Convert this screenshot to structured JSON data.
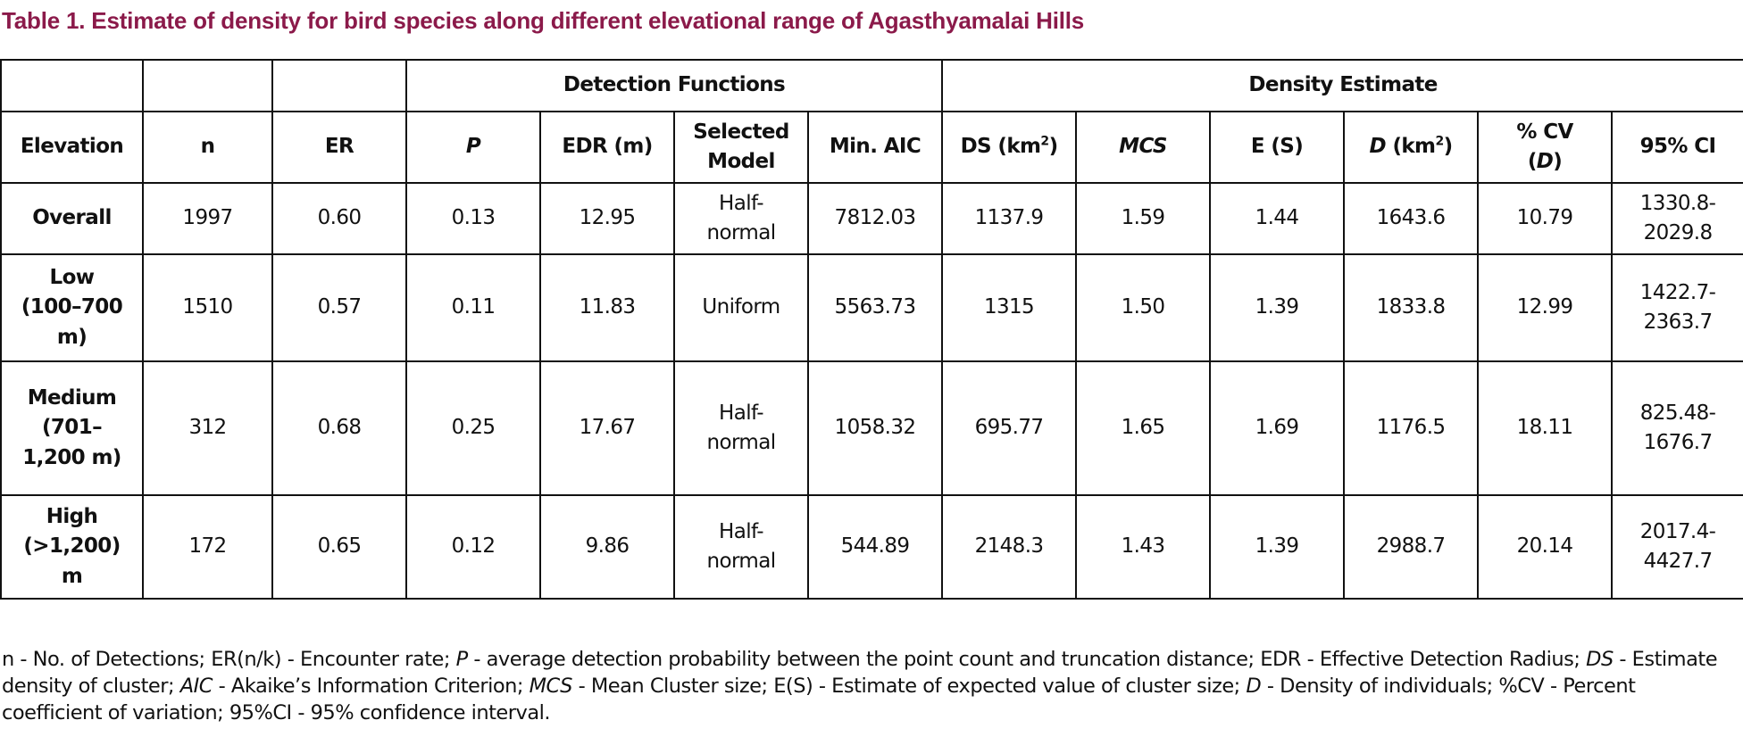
{
  "caption": "Table 1. Estimate of density for bird species along different elevational range of Agasthyamalai Hills",
  "header": {
    "group_detection": "Detection Functions",
    "group_density": "Density Estimate",
    "elevation": "Elevation",
    "n": "n",
    "er": "ER",
    "p": "P",
    "edr": "EDR (m)",
    "selected_model_1": "Selected",
    "selected_model_2": "Model",
    "min_aic": "Min. AIC",
    "ds": "DS (km",
    "ds_sup": "2",
    "ds_close": ")",
    "mcs": "MCS",
    "es": "E (S)",
    "d_italic": "D",
    "d_rest": " (km",
    "d_sup": "2",
    "d_close": ")",
    "cv_1": "% CV",
    "cv_2_open": "(",
    "cv_2_italic": "D",
    "cv_2_close": ")",
    "ci": "95% CI"
  },
  "rows": [
    {
      "elevation": [
        "Overall"
      ],
      "n": "1997",
      "er": "0.60",
      "p": "0.13",
      "edr": "12.95",
      "model": [
        "Half-",
        "normal"
      ],
      "aic": "7812.03",
      "ds": "1137.9",
      "mcs": "1.59",
      "es": "1.44",
      "d": "1643.6",
      "cv": "10.79",
      "ci": [
        "1330.8-",
        "2029.8"
      ]
    },
    {
      "elevation": [
        "Low",
        "(100–700",
        "m)"
      ],
      "n": "1510",
      "er": "0.57",
      "p": "0.11",
      "edr": "11.83",
      "model": [
        "Uniform"
      ],
      "aic": "5563.73",
      "ds": "1315",
      "mcs": "1.50",
      "es": "1.39",
      "d": "1833.8",
      "cv": "12.99",
      "ci": [
        "1422.7-",
        "2363.7"
      ]
    },
    {
      "elevation": [
        "Medium",
        "(701–",
        "1,200 m)"
      ],
      "n": "312",
      "er": "0.68",
      "p": "0.25",
      "edr": "17.67",
      "model": [
        "Half-",
        "normal"
      ],
      "aic": "1058.32",
      "ds": "695.77",
      "mcs": "1.65",
      "es": "1.69",
      "d": "1176.5",
      "cv": "18.11",
      "ci": [
        "825.48-",
        "1676.7"
      ]
    },
    {
      "elevation": [
        "High",
        "(>1,200)",
        "m"
      ],
      "n": "172",
      "er": "0.65",
      "p": "0.12",
      "edr": "9.86",
      "model": [
        "Half-",
        "normal"
      ],
      "aic": "544.89",
      "ds": "2148.3",
      "mcs": "1.43",
      "es": "1.39",
      "d": "2988.7",
      "cv": "20.14",
      "ci": [
        "2017.4-",
        "4427.7"
      ]
    }
  ],
  "footnote": {
    "n_def": "n - No. of Detections; ER(n/k) - Encounter rate; ",
    "p_abbr": "P",
    "p_def": " - average detection probability between the point count and truncation distance; EDR - Effective Detection Radius; ",
    "ds_abbr": "DS",
    "ds_def": " - Estimate density of cluster; ",
    "aic_abbr": "AIC",
    "aic_def": " - Akaike’s Information Criterion; ",
    "mcs_abbr": "MCS",
    "mcs_def": " - Mean Cluster size; E(S) - Estimate of expected value of cluster size; ",
    "d_abbr": "D",
    "d_def": " - Density of individuals; %CV - Percent coefficient of variation; 95%CI - 95% confidence interval."
  }
}
